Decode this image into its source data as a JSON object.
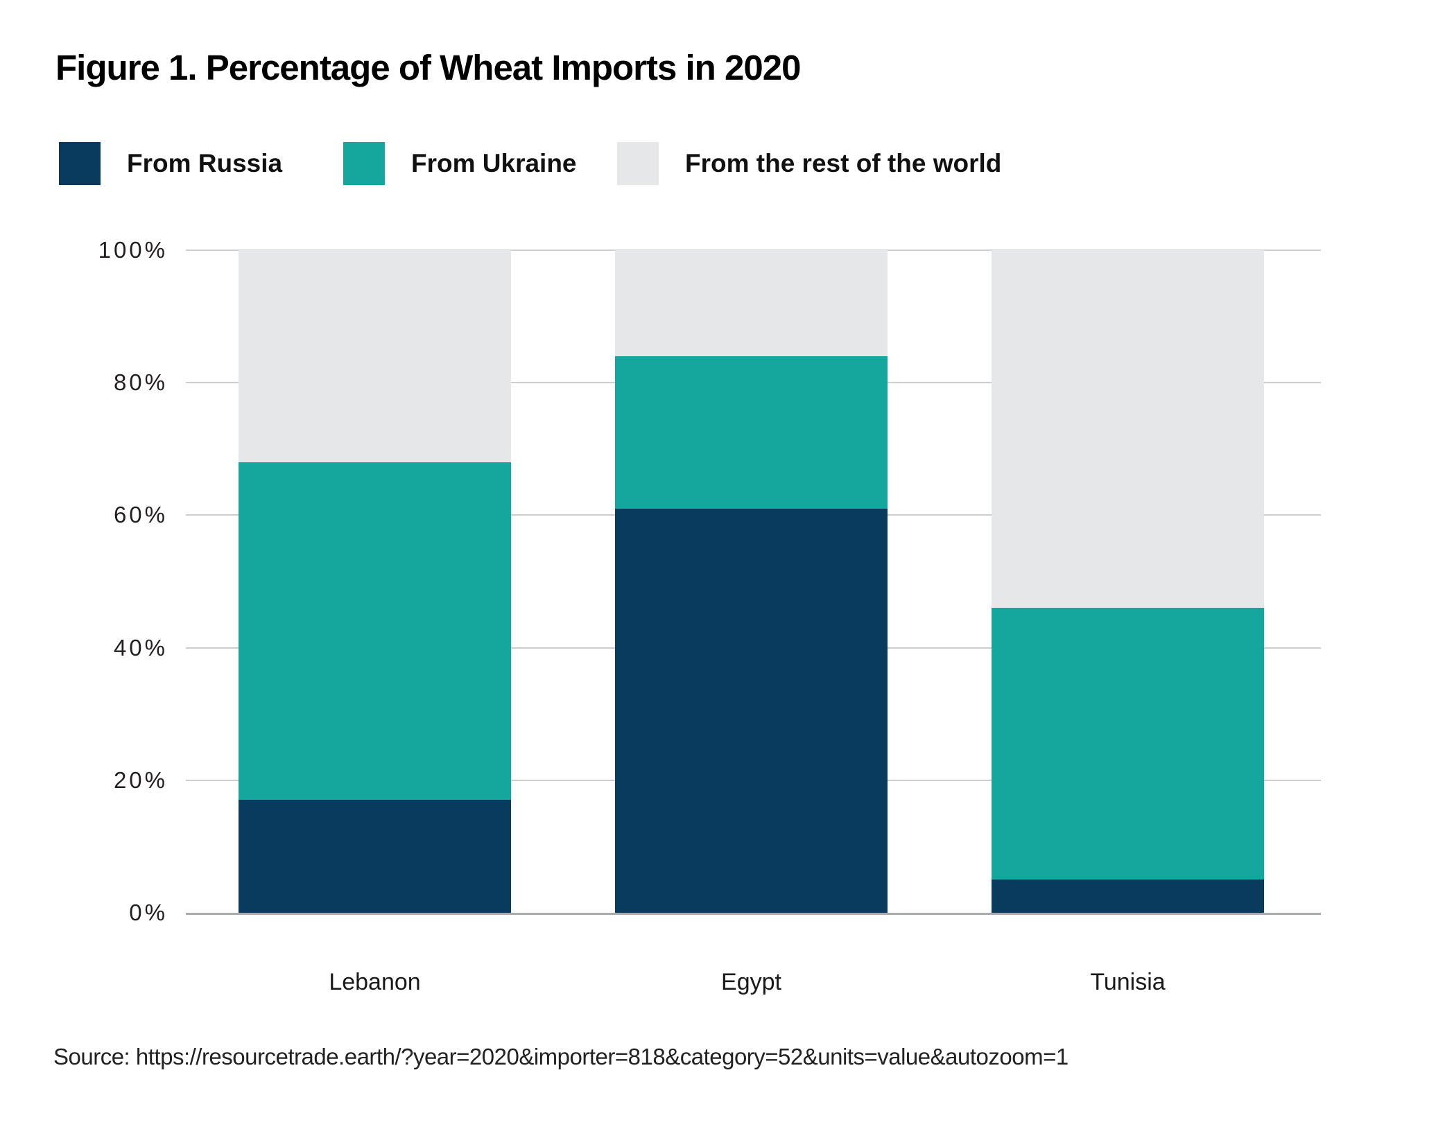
{
  "figure": {
    "title": "Figure 1. Percentage of Wheat Imports in 2020",
    "source": "Source: https://resourcetrade.earth/?year=2020&importer=818&category=52&units=value&autozoom=1"
  },
  "colors": {
    "russia": "#083b5d",
    "ukraine": "#15a79d",
    "rest_of_world": "#e6e7e8",
    "gridline": "#cbcdcf",
    "axis_line": "#a8abae",
    "text": "#1a1a1a"
  },
  "chart_data": {
    "type": "bar",
    "stacked": true,
    "percent_stacked": true,
    "title": "Figure 1. Percentage of Wheat Imports in 2020",
    "categories": [
      "Lebanon",
      "Egypt",
      "Tunisia"
    ],
    "series": [
      {
        "name": "From Russia",
        "color": "#083b5d",
        "values": [
          17,
          61,
          5
        ]
      },
      {
        "name": "From Ukraine",
        "color": "#15a79d",
        "values": [
          51,
          23,
          41
        ]
      },
      {
        "name": "From the rest of the world",
        "color": "#e6e7e8",
        "values": [
          32,
          16,
          54
        ]
      }
    ],
    "xlabel": "",
    "ylabel": "",
    "ylim": [
      0,
      100
    ],
    "yticks": [
      "0%",
      "20%",
      "40%",
      "60%",
      "80%",
      "100%"
    ],
    "grid": true,
    "legend_position": "top"
  }
}
